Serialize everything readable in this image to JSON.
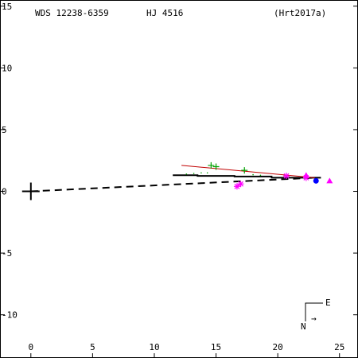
{
  "chart_data": {
    "type": "scatter",
    "title_left": "WDS 12238-6359",
    "title_center": "HJ 4516",
    "title_right": "(Hrt2017a)",
    "xlabel": "",
    "ylabel": "",
    "xlim": [
      -2.5,
      26.5
    ],
    "ylim": [
      -13.5,
      15.5
    ],
    "x_ticks": [
      0,
      5,
      10,
      15,
      20,
      25
    ],
    "y_ticks": [
      15,
      10,
      5,
      0,
      -5,
      -10
    ],
    "y_tick_labels": [
      "15",
      "10",
      "5",
      "0",
      "-5",
      "-10"
    ],
    "grid": false,
    "primary": {
      "x": 0,
      "y": 0
    },
    "dashed_line": [
      [
        0,
        0
      ],
      [
        23,
        1.1
      ]
    ],
    "solid_line": [
      [
        11.5,
        1.3
      ],
      [
        13.5,
        1.3
      ],
      [
        13.5,
        1.25
      ],
      [
        16.5,
        1.25
      ],
      [
        16.5,
        1.2
      ],
      [
        19.5,
        1.2
      ],
      [
        19.5,
        1.1
      ],
      [
        23.5,
        1.1
      ]
    ],
    "red_line": [
      [
        12.2,
        2.1
      ],
      [
        23,
        1.1
      ]
    ],
    "series": [
      {
        "marker": "plus",
        "color": "#00a000",
        "points": [
          [
            14.6,
            2.1
          ],
          [
            15.0,
            2.0
          ],
          [
            17.3,
            1.7
          ]
        ]
      },
      {
        "marker": "dot",
        "color": "#00a000",
        "points": [
          [
            12.6,
            1.4
          ],
          [
            13.2,
            1.45
          ],
          [
            13.8,
            1.5
          ],
          [
            14.3,
            1.5
          ],
          [
            18.0,
            1.35
          ],
          [
            18.6,
            1.3
          ]
        ]
      },
      {
        "marker": "asterisk",
        "color": "#ff00ff",
        "points": [
          [
            16.7,
            0.4
          ],
          [
            17.0,
            0.6
          ],
          [
            20.7,
            1.25
          ],
          [
            22.3,
            1.1
          ]
        ]
      },
      {
        "marker": "triangle",
        "color": "#ff00ff",
        "points": [
          [
            22.3,
            1.3
          ],
          [
            24.2,
            0.85
          ]
        ]
      },
      {
        "marker": "dot-filled",
        "color": "#0000ff",
        "points": [
          [
            23.1,
            0.85
          ]
        ]
      }
    ],
    "orientation": {
      "north_label": "N",
      "east_label": "E",
      "motion_arrow": "→"
    }
  }
}
